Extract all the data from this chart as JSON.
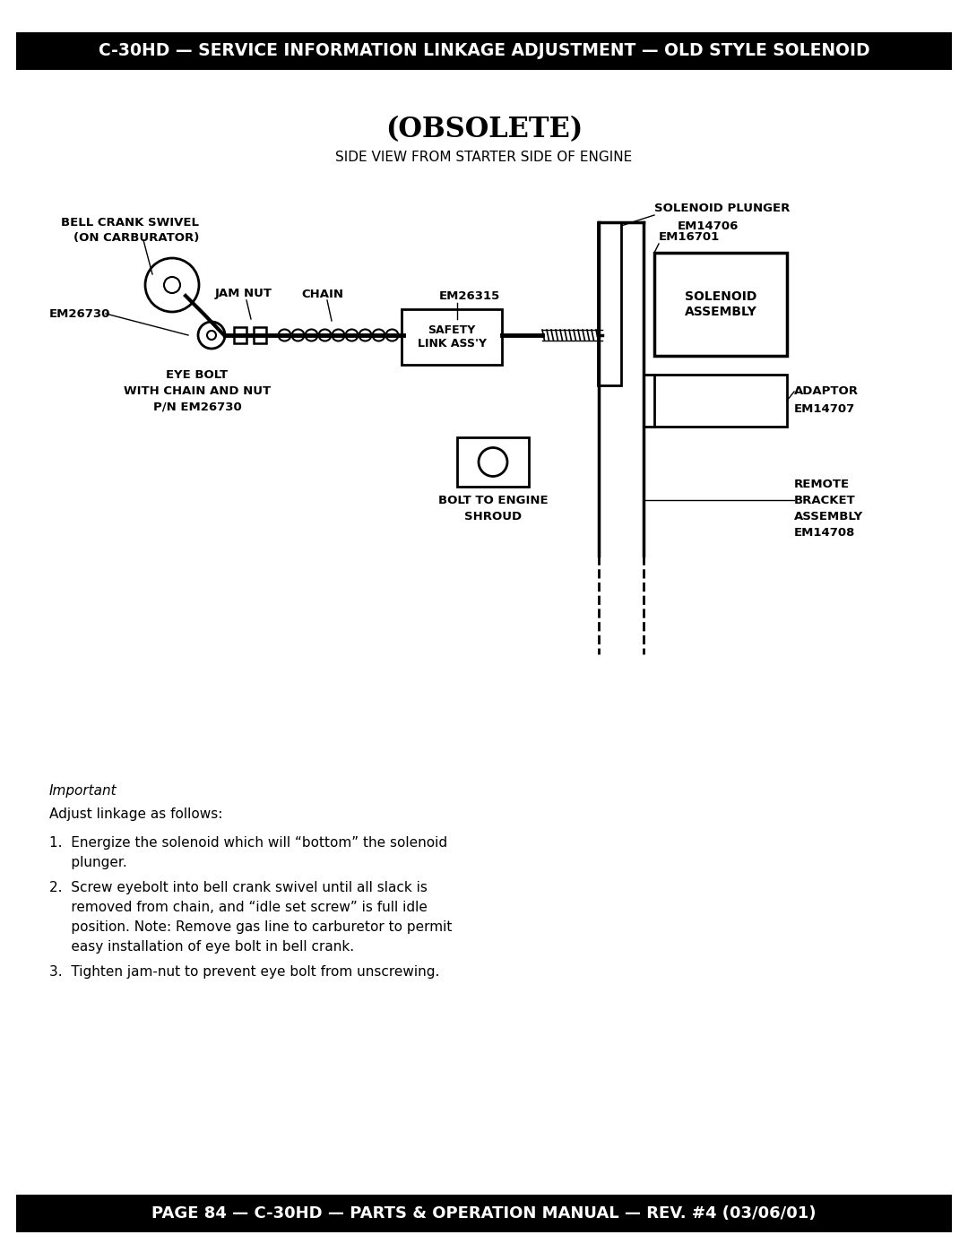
{
  "bg_color": "#ffffff",
  "header_bg": "#000000",
  "header_text": "C-30HD — SERVICE INFORMATION LINKAGE ADJUSTMENT — OLD STYLE SOLENOID",
  "header_text_color": "#ffffff",
  "footer_bg": "#000000",
  "footer_text": "PAGE 84 — C-30HD — PARTS & OPERATION MANUAL — REV. #4 (03/06/01)",
  "footer_text_color": "#ffffff",
  "title": "(OBSOLETE)",
  "subtitle": "SIDE VIEW FROM STARTER SIDE OF ENGINE",
  "important_label": "Important",
  "adjust_label": "Adjust linkage as follows:",
  "step1_lines": [
    "1.  Energize the solenoid which will “bottom” the solenoid",
    "     plunger."
  ],
  "step2_lines": [
    "2.  Screw eyebolt into bell crank swivel until all slack is",
    "     removed from chain, and “idle set screw” is full idle",
    "     position. Note: Remove gas line to carburetor to permit",
    "     easy installation of eye bolt in bell crank."
  ],
  "step3_lines": [
    "3.  Tighten jam-nut to prevent eye bolt from unscrewing."
  ]
}
